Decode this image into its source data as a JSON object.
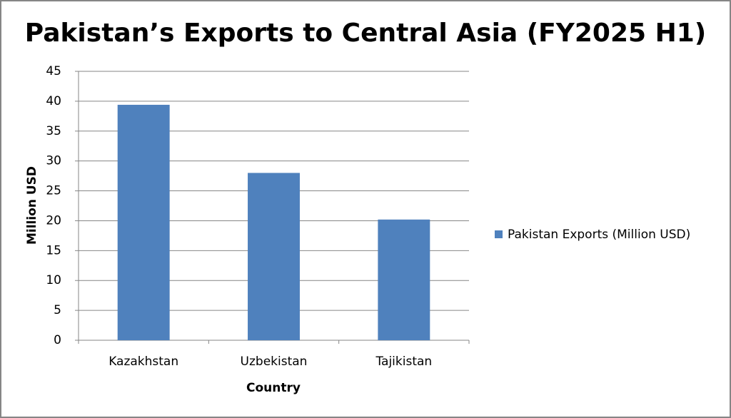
{
  "chart_data": {
    "type": "bar",
    "title": "Pakistan’s Exports to Central Asia (FY2025 H1)",
    "x_label": "Country",
    "y_label": "Million USD",
    "categories": [
      "Kazakhstan",
      "Uzbekistan",
      "Tajikistan"
    ],
    "series": [
      {
        "name": "Pakistan Exports (Million USD)",
        "color": "#4f81bd",
        "values": [
          39.4,
          28,
          20.2
        ]
      }
    ],
    "ylim": [
      0,
      45
    ],
    "yticks": [
      0,
      5,
      10,
      15,
      20,
      25,
      30,
      35,
      40,
      45
    ],
    "grid": true,
    "legend": "right"
  }
}
